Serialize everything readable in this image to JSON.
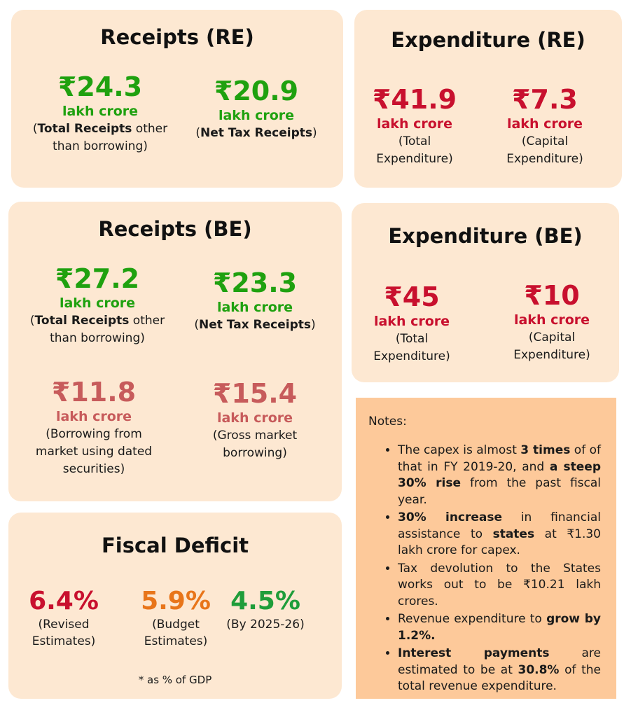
{
  "receipts_re": {
    "title": "Receipts (RE)",
    "items": [
      {
        "amount": "₹24.3",
        "unit": "lakh crore",
        "desc_bold": "Total Receipts",
        "desc_rest": "other than borrowing"
      },
      {
        "amount": "₹20.9",
        "unit": "lakh crore",
        "desc_bold": "Net Tax Receipts"
      }
    ]
  },
  "expenditure_re": {
    "title": "Expenditure (RE)",
    "items": [
      {
        "amount": "₹41.9",
        "unit": "lakh crore",
        "desc": "Total Expenditure"
      },
      {
        "amount": "₹7.3",
        "unit": "lakh crore",
        "desc": "Capital Expenditure"
      }
    ]
  },
  "receipts_be": {
    "title": "Receipts (BE)",
    "items": [
      {
        "amount": "₹27.2",
        "unit": "lakh crore",
        "desc_bold": "Total Receipts",
        "desc_rest": "other than borrowing"
      },
      {
        "amount": "₹23.3",
        "unit": "lakh crore",
        "desc_bold": "Net Tax Receipts"
      },
      {
        "amount": "₹11.8",
        "unit": "lakh crore",
        "desc": "Borrowing from market using dated securities"
      },
      {
        "amount": "₹15.4",
        "unit": "lakh crore",
        "desc": "Gross market borrowing"
      }
    ]
  },
  "expenditure_be": {
    "title": "Expenditure (BE)",
    "items": [
      {
        "amount": "₹45",
        "unit": "lakh crore",
        "desc": "Total Expenditure"
      },
      {
        "amount": "₹10",
        "unit": "lakh crore",
        "desc": "Capital Expenditure"
      }
    ]
  },
  "fiscal_deficit": {
    "title": "Fiscal Deficit",
    "items": [
      {
        "value": "6.4%",
        "label": "Revised Estimates",
        "color": "#c8102e"
      },
      {
        "value": "5.9%",
        "label": "Budget Estimates",
        "color": "#e8751a"
      },
      {
        "value": "4.5%",
        "label": "By 2025-26",
        "color": "#1f9d3a"
      }
    ],
    "footnote": "* as % of GDP"
  },
  "notes": {
    "title": "Notes:",
    "n1": {
      "a": "The capex is almost ",
      "b": "3 times",
      "c": " of of that in FY 2019-20, and ",
      "d": "a steep 30% rise",
      "e": " from the past fiscal year."
    },
    "n2": {
      "a": "30% increase",
      "b": " in financial assistance to ",
      "c": "states",
      "d": " at ₹1.30 lakh crore for capex."
    },
    "n3": {
      "a": "Tax devolution to the States works out to be ₹10.21 lakh crores."
    },
    "n4": {
      "a": "Revenue expenditure to ",
      "b": "grow by 1.2%."
    },
    "n5": {
      "a": "Interest payments",
      "b": " are estimated to be at ",
      "c": "30.8%",
      "d": " of the total revenue expenditure."
    }
  },
  "colors": {
    "card_bg": "#fde8d2",
    "notes_bg": "#fdc99a",
    "green": "#1fa10f",
    "red": "#c8102e",
    "rose": "#c75b5b"
  }
}
